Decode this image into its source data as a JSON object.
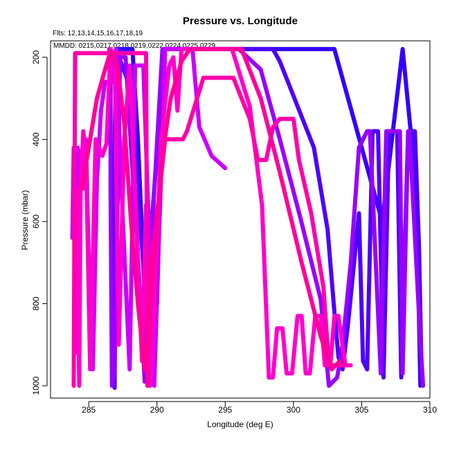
{
  "chart_data": {
    "type": "line",
    "title": "Pressure vs. Longitude",
    "subtitle_flts": "Flts: 12,13,14,15,16,17,18,19",
    "subtitle_mmdd": "MMDD: 0215,0217,0218,0219,0222,0224,0225,0229",
    "xlabel": "Longitude (deg E)",
    "ylabel": "Pressure (mbar)",
    "xlim": [
      282.2,
      310.0
    ],
    "ylim": [
      1030,
      160
    ],
    "y_reversed": true,
    "x_ticks": [
      285,
      290,
      295,
      300,
      305,
      310
    ],
    "x_tick_labels": [
      "285",
      "290",
      "295",
      "300",
      "305",
      "310"
    ],
    "y_ticks": [
      200,
      400,
      600,
      800,
      1000
    ],
    "y_tick_labels": [
      "200",
      "400",
      "600",
      "800",
      "1000"
    ],
    "grid": false,
    "series": [
      {
        "color": "#3300ff",
        "points": [
          [
            286.7,
            880
          ],
          [
            287.0,
            180
          ],
          [
            288.2,
            180
          ],
          [
            288.6,
            400
          ],
          [
            289.0,
            700
          ],
          [
            289.3,
            1000
          ],
          [
            290.0,
            800
          ],
          [
            290.5,
            180
          ],
          [
            301.5,
            180
          ],
          [
            303.0,
            180
          ],
          [
            306.5,
            600
          ],
          [
            308.0,
            180
          ],
          [
            309.0,
            520
          ],
          [
            309.3,
            1000
          ]
        ]
      },
      {
        "color": "#4d00ff",
        "points": [
          [
            286.9,
            1005
          ],
          [
            287.0,
            180
          ],
          [
            288.0,
            270
          ],
          [
            289.2,
            790
          ],
          [
            289.8,
            520
          ],
          [
            290.6,
            180
          ],
          [
            298.5,
            180
          ],
          [
            299.0,
            210
          ],
          [
            301.5,
            420
          ],
          [
            302.5,
            620
          ],
          [
            303.0,
            820
          ],
          [
            303.3,
            930
          ],
          [
            303.6,
            960
          ],
          [
            304.0,
            850
          ],
          [
            304.8,
            580
          ],
          [
            305.1,
            940
          ],
          [
            305.4,
            960
          ],
          [
            305.8,
            380
          ],
          [
            306.2,
            380
          ],
          [
            306.6,
            980
          ],
          [
            307.0,
            380
          ],
          [
            307.6,
            380
          ],
          [
            307.9,
            980
          ],
          [
            308.4,
            380
          ],
          [
            308.9,
            380
          ],
          [
            309.2,
            660
          ],
          [
            309.4,
            990
          ]
        ]
      },
      {
        "color": "#9900ff",
        "points": [
          [
            286.5,
            180
          ],
          [
            286.6,
            200
          ],
          [
            286.6,
            520
          ],
          [
            286.7,
            1000
          ],
          [
            286.9,
            960
          ],
          [
            287.3,
            200
          ],
          [
            287.7,
            200
          ],
          [
            288.1,
            420
          ],
          [
            288.6,
            680
          ],
          [
            289.1,
            990
          ],
          [
            289.5,
            700
          ],
          [
            290.4,
            180
          ],
          [
            296.0,
            180
          ],
          [
            297.6,
            230
          ],
          [
            299.0,
            400
          ],
          [
            300.5,
            590
          ],
          [
            302.0,
            790
          ],
          [
            302.6,
            1000
          ],
          [
            303.2,
            980
          ],
          [
            303.6,
            900
          ],
          [
            304.2,
            700
          ],
          [
            304.8,
            420
          ],
          [
            305.4,
            380
          ],
          [
            305.6,
            380
          ],
          [
            306.4,
            970
          ],
          [
            306.8,
            380
          ],
          [
            307.8,
            380
          ],
          [
            308.0,
            970
          ],
          [
            308.4,
            380
          ],
          [
            308.5,
            380
          ],
          [
            309.3,
            890
          ],
          [
            309.5,
            1000
          ]
        ]
      },
      {
        "color": "#cc00ff",
        "points": [
          [
            283.8,
            640
          ],
          [
            283.9,
            420
          ],
          [
            284.0,
            920
          ],
          [
            284.2,
            420
          ],
          [
            284.6,
            520
          ],
          [
            284.8,
            400
          ],
          [
            285.0,
            700
          ],
          [
            285.3,
            960
          ],
          [
            285.6,
            500
          ],
          [
            285.9,
            330
          ],
          [
            286.2,
            260
          ],
          [
            286.7,
            260
          ],
          [
            287.0,
            180
          ],
          [
            287.5,
            600
          ],
          [
            288.0,
            960
          ],
          [
            288.4,
            220
          ],
          [
            289.0,
            220
          ],
          [
            289.8,
            1000
          ],
          [
            290.1,
            680
          ],
          [
            290.4,
            400
          ],
          [
            290.6,
            180
          ],
          [
            291.8,
            180
          ],
          [
            292.6,
            180
          ],
          [
            293.1,
            370
          ],
          [
            294.0,
            440
          ],
          [
            295.0,
            470
          ]
        ]
      },
      {
        "color": "#ff00cc",
        "points": [
          [
            284.0,
            590
          ],
          [
            284.1,
            520
          ],
          [
            284.3,
            1000
          ],
          [
            284.4,
            520
          ],
          [
            284.6,
            380
          ],
          [
            284.8,
            440
          ],
          [
            285.1,
            960
          ],
          [
            285.5,
            400
          ],
          [
            286.0,
            440
          ],
          [
            286.3,
            410
          ],
          [
            286.6,
            180
          ],
          [
            286.9,
            200
          ],
          [
            287.2,
            900
          ],
          [
            287.6,
            400
          ],
          [
            288.0,
            220
          ],
          [
            288.5,
            600
          ],
          [
            288.9,
            940
          ],
          [
            289.2,
            560
          ],
          [
            289.5,
            1000
          ],
          [
            289.8,
            800
          ],
          [
            290.3,
            400
          ],
          [
            290.9,
            220
          ],
          [
            291.2,
            200
          ],
          [
            291.5,
            330
          ],
          [
            291.8,
            180
          ],
          [
            295.5,
            180
          ],
          [
            296.8,
            320
          ],
          [
            297.7,
            560
          ],
          [
            298.2,
            980
          ],
          [
            298.5,
            980
          ],
          [
            298.8,
            860
          ],
          [
            299.2,
            860
          ],
          [
            299.5,
            970
          ],
          [
            299.9,
            970
          ],
          [
            300.3,
            830
          ],
          [
            300.6,
            830
          ],
          [
            300.9,
            970
          ],
          [
            301.2,
            970
          ],
          [
            301.6,
            830
          ],
          [
            302.0,
            830
          ],
          [
            302.3,
            950
          ],
          [
            302.7,
            950
          ],
          [
            303.0,
            830
          ],
          [
            303.3,
            830
          ],
          [
            303.8,
            950
          ],
          [
            304.2,
            950
          ]
        ]
      },
      {
        "color": "#ff00aa",
        "points": [
          [
            283.9,
            1000
          ],
          [
            284.0,
            190
          ],
          [
            289.2,
            190
          ],
          [
            289.3,
            1000
          ],
          [
            289.6,
            700
          ],
          [
            290.6,
            400
          ],
          [
            291.9,
            400
          ],
          [
            292.2,
            380
          ],
          [
            293.4,
            250
          ],
          [
            295.6,
            250
          ],
          [
            296.8,
            350
          ],
          [
            297.4,
            450
          ],
          [
            298.0,
            450
          ],
          [
            298.5,
            370
          ],
          [
            299.0,
            350
          ],
          [
            300.0,
            350
          ],
          [
            300.4,
            450
          ],
          [
            301.3,
            580
          ],
          [
            302.2,
            760
          ],
          [
            302.6,
            950
          ],
          [
            303.4,
            950
          ],
          [
            303.9,
            950
          ]
        ]
      },
      {
        "color": "#ff0099",
        "points": [
          [
            284.5,
            520
          ],
          [
            285.0,
            420
          ],
          [
            285.6,
            300
          ],
          [
            286.2,
            230
          ],
          [
            286.6,
            185
          ],
          [
            287.1,
            220
          ],
          [
            287.6,
            360
          ],
          [
            288.1,
            600
          ],
          [
            288.6,
            800
          ],
          [
            289.1,
            960
          ],
          [
            289.7,
            720
          ],
          [
            290.4,
            440
          ],
          [
            291.0,
            300
          ],
          [
            291.8,
            210
          ],
          [
            292.4,
            180
          ],
          [
            296.2,
            180
          ],
          [
            297.6,
            300
          ],
          [
            299.0,
            480
          ],
          [
            300.6,
            700
          ],
          [
            302.0,
            880
          ],
          [
            302.8,
            960
          ],
          [
            303.4,
            940
          ]
        ]
      }
    ]
  }
}
